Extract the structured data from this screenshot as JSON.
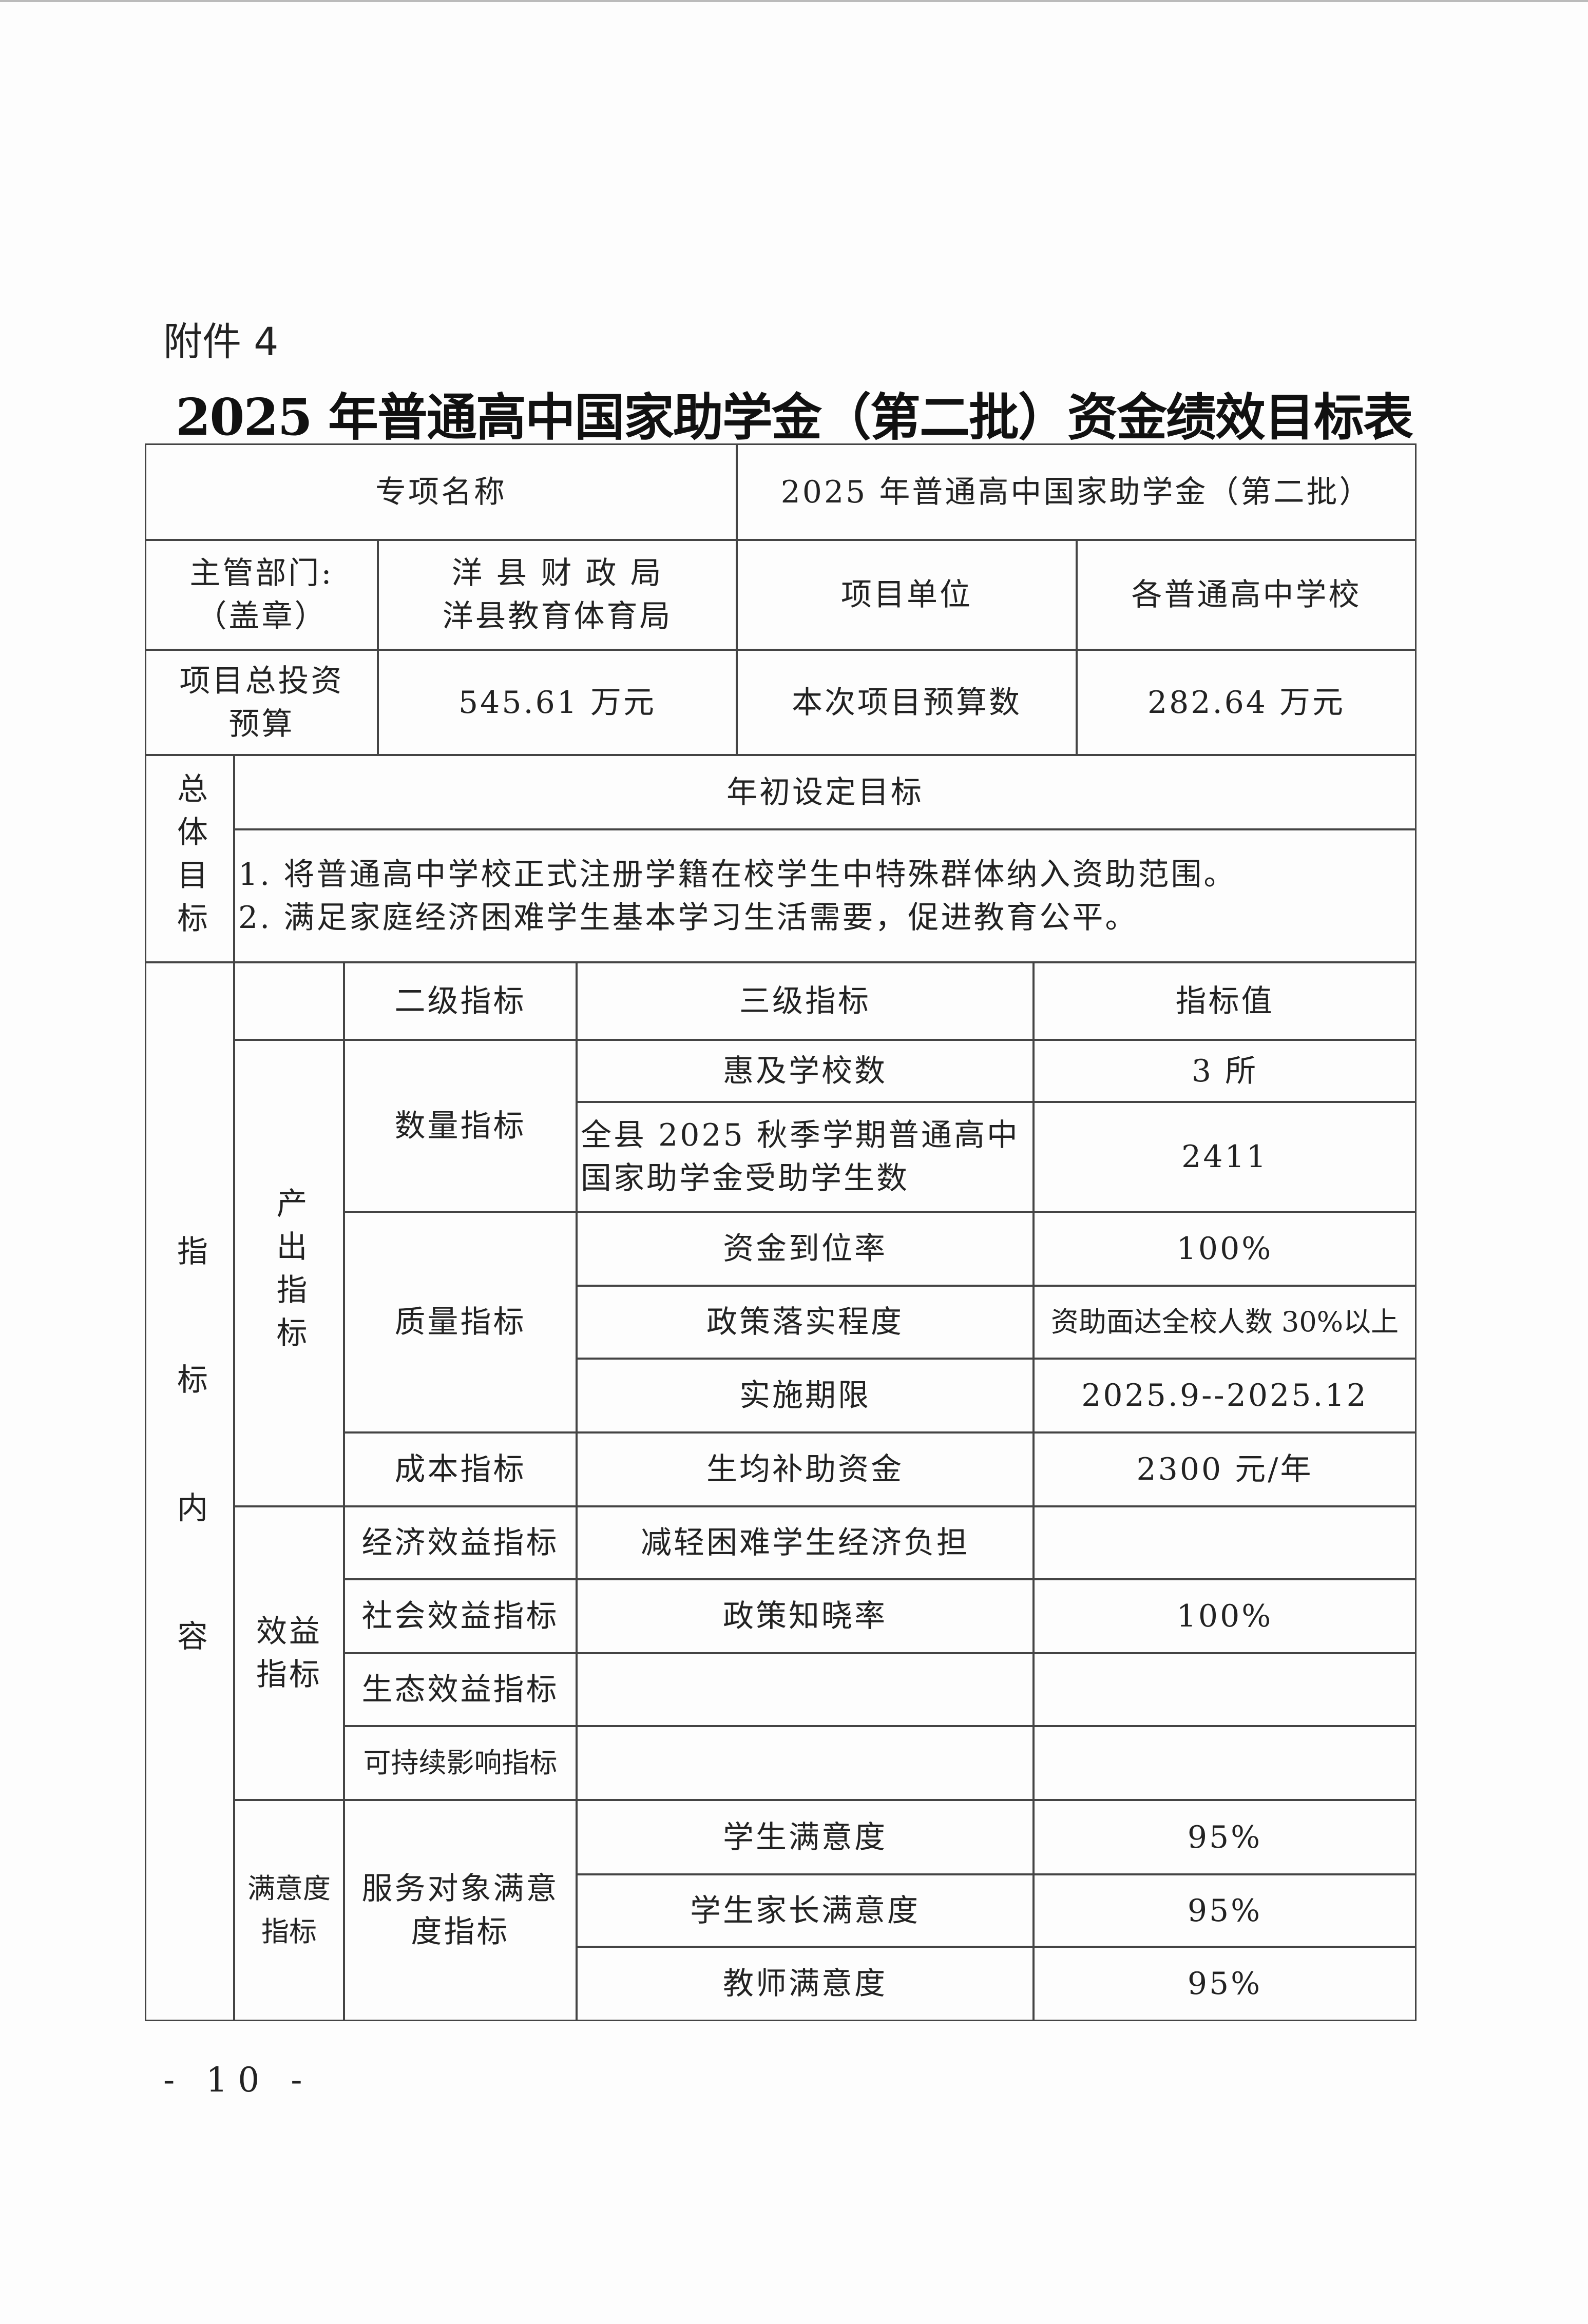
{
  "document": {
    "attachment_label": "附件 4",
    "title": "2025 年普通高中国家助学金（第二批）资金绩效目标表",
    "page_number": "- 10 -"
  },
  "table": {
    "project_name_label": "专项名称",
    "project_name": "2025 年普通高中国家助学金（第二批）",
    "dept_label": "主管部门:\n（盖章）",
    "dept_value": "洋 县 财 政 局\n洋县教育体育局",
    "unit_label": "项目单位",
    "unit_value": "各普通高中学校",
    "total_budget_label": "项目总投资\n预算",
    "total_budget_value": "545.61 万元",
    "current_budget_label": "本次项目预算数",
    "current_budget_value": "282.64 万元",
    "overall_goal_label": "总体目标",
    "goal_header": "年初设定目标",
    "goals": "1. 将普通高中学校正式注册学籍在校学生中特殊群体纳入资助范围。\n2. 满足家庭经济困难学生基本学习生活需要，促进教育公平。",
    "indicator_label": "指标内容",
    "headers": {
      "level2": "二级指标",
      "level3": "三级指标",
      "value": "指标值"
    },
    "output": {
      "label": "产出指标",
      "quantity": "数量指标",
      "quality": "质量指标",
      "cost": "成本指标",
      "rows": [
        {
          "name": "惠及学校数",
          "value": "3 所"
        },
        {
          "name": "全县 2025 秋季学期普通高中国家助学金受助学生数",
          "value": "2411"
        },
        {
          "name": "资金到位率",
          "value": "100%"
        },
        {
          "name": "政策落实程度",
          "value": "资助面达全校人数 30%以上"
        },
        {
          "name": "实施期限",
          "value": "2025.9--2025.12"
        },
        {
          "name": "生均补助资金",
          "value": "2300 元/年"
        }
      ]
    },
    "benefit": {
      "label": "效益\n指标",
      "rows": [
        {
          "level2": "经济效益指标",
          "name": "减轻困难学生经济负担",
          "value": ""
        },
        {
          "level2": "社会效益指标",
          "name": "政策知晓率",
          "value": "100%"
        },
        {
          "level2": "生态效益指标",
          "name": "",
          "value": ""
        },
        {
          "level2": "可持续影响指标",
          "name": "",
          "value": ""
        }
      ]
    },
    "satisfaction": {
      "label": "满意度\n指标",
      "level2": "服务对象满意\n度指标",
      "rows": [
        {
          "name": "学生满意度",
          "value": "95%"
        },
        {
          "name": "学生家长满意度",
          "value": "95%"
        },
        {
          "name": "教师满意度",
          "value": "95%"
        }
      ]
    }
  }
}
